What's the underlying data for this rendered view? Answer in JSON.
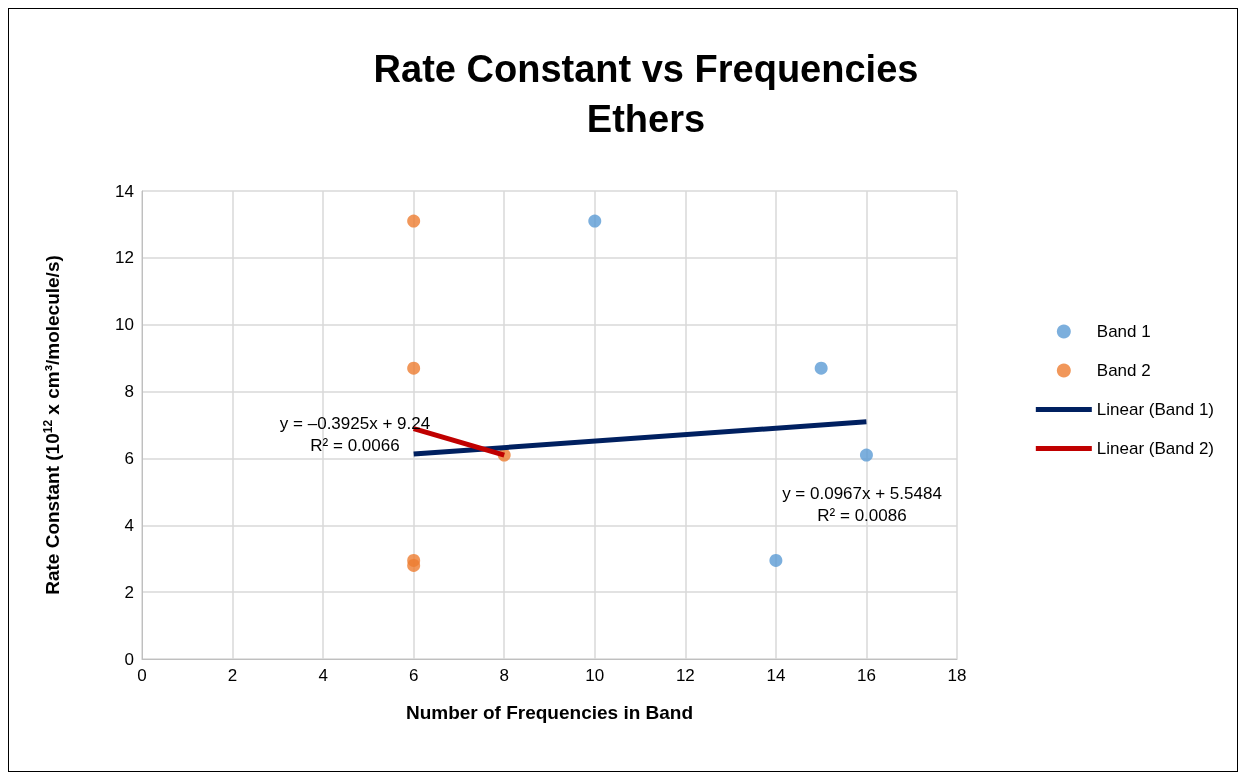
{
  "chart_data": {
    "type": "scatter",
    "title": "Rate Constant vs Frequencies",
    "subtitle": "Ethers",
    "xlabel": "Number of Frequencies in Band",
    "ylabel": "Rate Constant (10$^{12}$ x cm³/molecule/s)",
    "xlim": [
      0,
      18
    ],
    "xticks": [
      0,
      2,
      4,
      6,
      8,
      10,
      12,
      14,
      16,
      18
    ],
    "ylim": [
      0,
      14
    ],
    "yticks": [
      0,
      2,
      4,
      6,
      8,
      10,
      12,
      14
    ],
    "grid": true,
    "legend": "right",
    "series": [
      {
        "name": "Band 1",
        "color": "#5b9bd5",
        "marker": "circle",
        "x": [
          10,
          15,
          16,
          14
        ],
        "values": [
          13.1,
          8.7,
          6.1,
          2.95
        ]
      },
      {
        "name": "Band 2",
        "color": "#ed7d31",
        "marker": "circle",
        "x": [
          6,
          6,
          8,
          6,
          6
        ],
        "values": [
          13.1,
          8.7,
          6.1,
          2.95,
          2.8
        ]
      },
      {
        "name": "Linear (Band 1)",
        "type": "line",
        "color": "#002060",
        "marker": "none",
        "x": [
          6,
          16
        ],
        "values": [
          6.13,
          7.1
        ]
      },
      {
        "name": "Linear (Band 2)",
        "type": "line",
        "color": "#c00000",
        "marker": "none",
        "x": [
          6,
          8
        ],
        "values": [
          6.89,
          6.1
        ]
      }
    ],
    "annotations": [
      "y = –0.3925x + 9.24\nR² = 0.0066",
      "y = 0.0967x + 5.5484\nR² = 0.0086"
    ]
  }
}
